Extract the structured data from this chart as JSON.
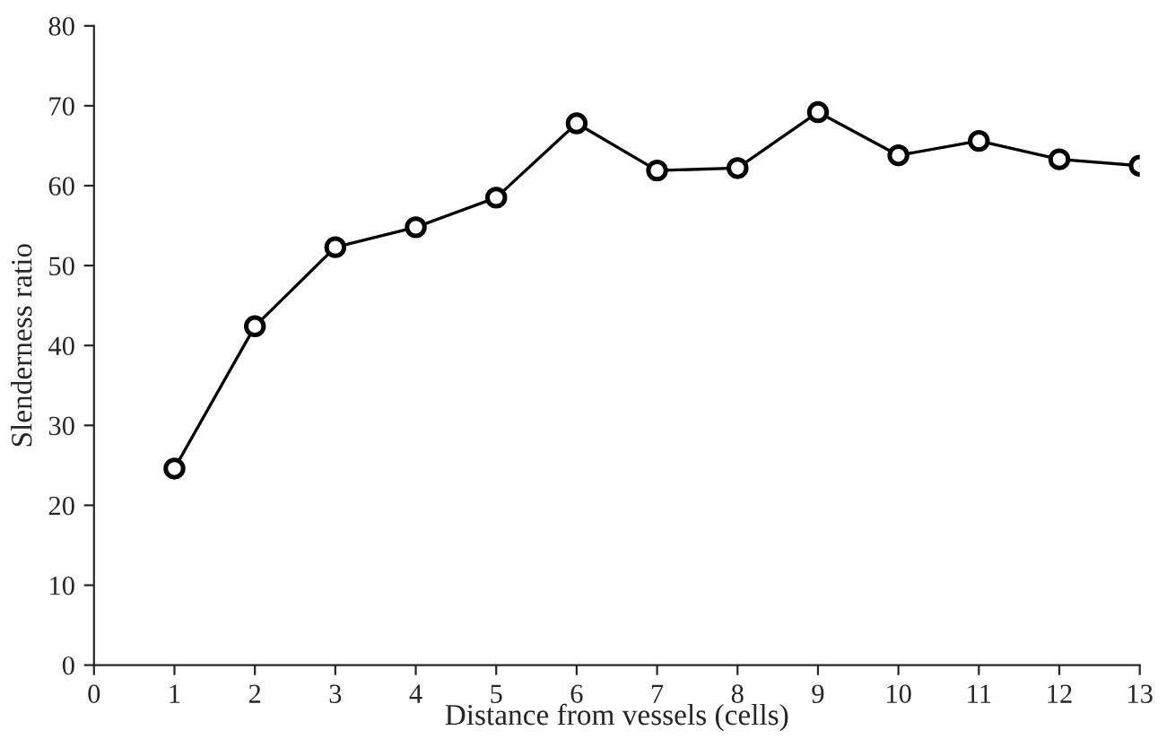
{
  "chart_data": {
    "type": "line",
    "xlabel": "Distance from vessels (cells)",
    "ylabel": "Slenderness ratio",
    "x": [
      1,
      2,
      3,
      4,
      5,
      6,
      7,
      8,
      9,
      10,
      11,
      12,
      13
    ],
    "series": [
      {
        "color": "#000000",
        "values": [
          24.6,
          42.4,
          52.3,
          54.8,
          58.5,
          67.8,
          61.9,
          62.2,
          69.2,
          63.8,
          65.6,
          63.3,
          62.5
        ]
      }
    ],
    "xlim": [
      0,
      13
    ],
    "xticks": [
      0,
      1,
      2,
      3,
      4,
      5,
      6,
      7,
      8,
      9,
      10,
      11,
      12,
      13
    ],
    "ylim": [
      0,
      80
    ],
    "yticks": [
      0,
      10,
      20,
      30,
      40,
      50,
      60,
      70,
      80
    ],
    "marker": "circle",
    "line_style": "solid",
    "grid": false,
    "legend": false
  }
}
